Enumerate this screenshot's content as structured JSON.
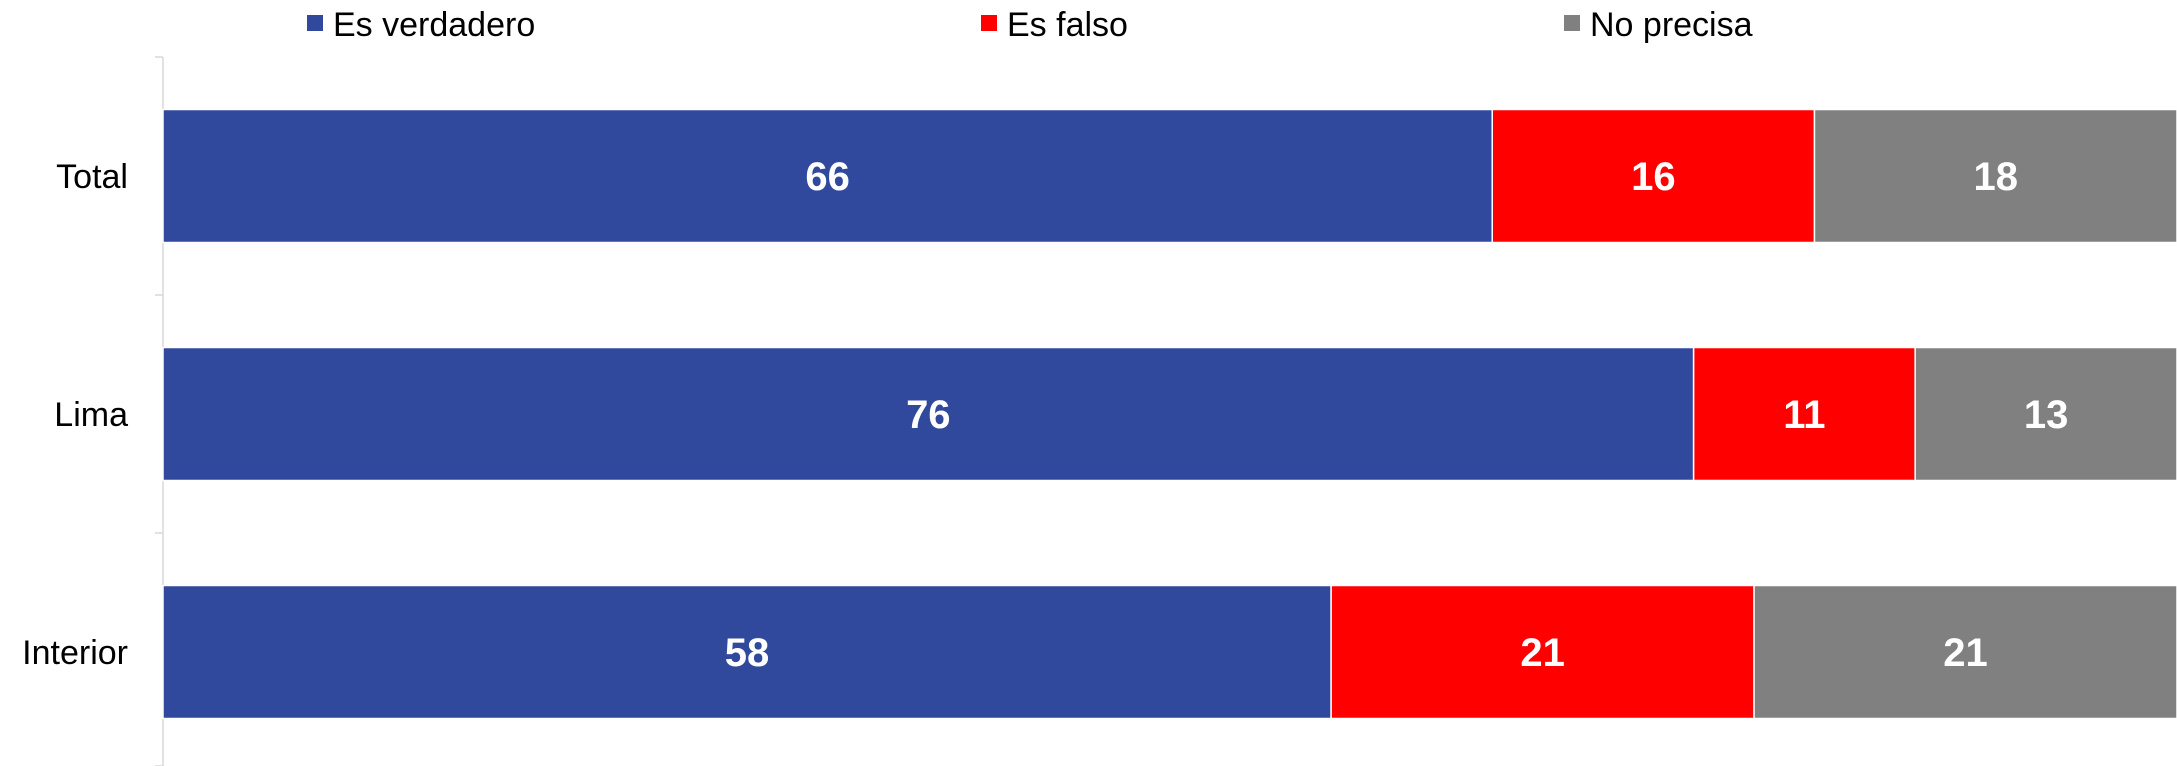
{
  "chart_data": {
    "type": "bar",
    "orientation": "horizontal",
    "stacked": true,
    "categories": [
      "Total",
      "Lima",
      "Interior"
    ],
    "series": [
      {
        "name": "Es verdadero",
        "color": "#31499D",
        "values": [
          66,
          76,
          58
        ]
      },
      {
        "name": "Es falso",
        "color": "#FF0000",
        "values": [
          16,
          11,
          21
        ]
      },
      {
        "name": "No precisa",
        "color": "#808080",
        "values": [
          18,
          13,
          21
        ]
      }
    ],
    "xlim": [
      0,
      100
    ],
    "grid": false,
    "legend_position": "top",
    "show_data_labels": true
  }
}
